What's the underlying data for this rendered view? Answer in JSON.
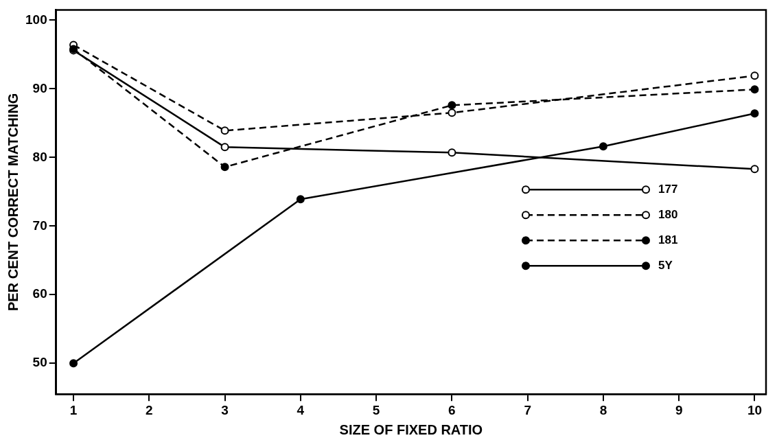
{
  "chart_data": {
    "type": "line",
    "xlabel": "SIZE OF FIXED RATIO",
    "ylabel": "PER CENT CORRECT MATCHING",
    "xlim": [
      0.77,
      10.15
    ],
    "xticks": [
      1,
      2,
      3,
      4,
      5,
      6,
      7,
      8,
      9,
      10
    ],
    "ylim": [
      45.5,
      101.5
    ],
    "yticks": [
      50,
      60,
      70,
      80,
      90,
      100
    ],
    "grid": false,
    "legend": "bottom right",
    "series": [
      {
        "name": "177",
        "color": "#000000",
        "x": [
          1,
          3,
          6,
          10
        ],
        "values": [
          95.6,
          81.5,
          80.7,
          78.3
        ],
        "line_style": "solid",
        "marker": "circle-open"
      },
      {
        "name": "180",
        "color": "#000000",
        "x": [
          1,
          3,
          6,
          10
        ],
        "values": [
          96.4,
          83.9,
          86.5,
          91.9
        ],
        "line_style": "dashed",
        "marker": "circle-open"
      },
      {
        "name": "181",
        "color": "#000000",
        "x": [
          1,
          3,
          6,
          10
        ],
        "values": [
          95.8,
          78.6,
          87.6,
          89.9
        ],
        "line_style": "dashed",
        "marker": "circle"
      },
      {
        "name": "5Y",
        "color": "#000000",
        "x": [
          1,
          4,
          8,
          10
        ],
        "values": [
          50,
          73.9,
          81.6,
          86.4
        ],
        "line_style": "solid",
        "marker": "circle"
      }
    ]
  }
}
